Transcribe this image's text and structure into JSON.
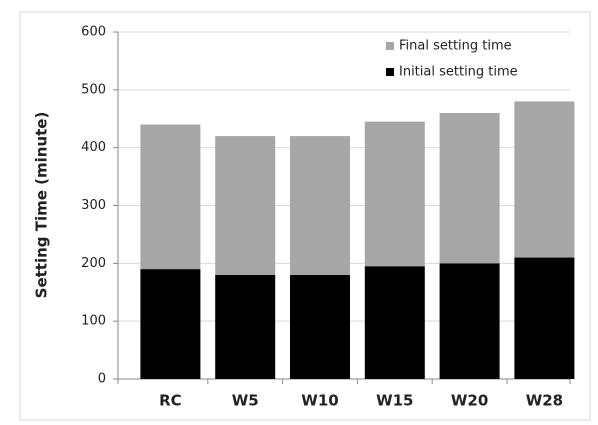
{
  "chart_data": {
    "type": "bar",
    "stacked": true,
    "y_label": "Setting Time (minute)",
    "categories": [
      "RC",
      "W5",
      "W10",
      "W15",
      "W20",
      "W28"
    ],
    "series": [
      {
        "name": "Initial setting time",
        "color": "#000000",
        "values": [
          190,
          180,
          180,
          195,
          200,
          210
        ]
      },
      {
        "name": "Final setting time",
        "color": "#a6a6a6",
        "values": [
          250,
          240,
          240,
          250,
          260,
          270
        ]
      }
    ],
    "ylim": [
      0,
      600
    ],
    "yticks": [
      0,
      100,
      200,
      300,
      400,
      500,
      600
    ],
    "grid": true,
    "legend": "top-right"
  }
}
